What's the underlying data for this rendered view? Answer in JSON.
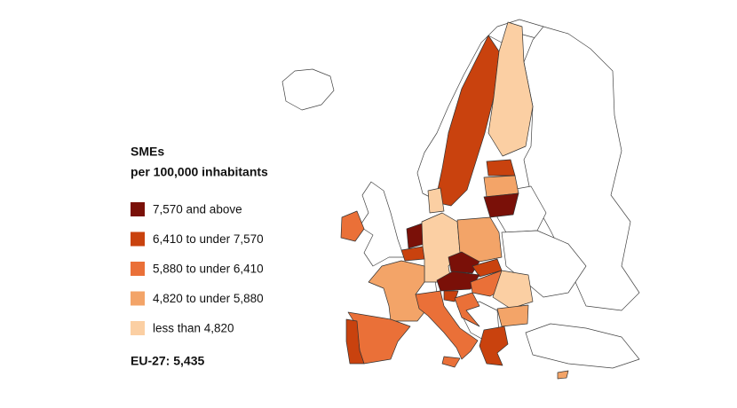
{
  "legend": {
    "title": [
      "SMEs",
      "per 100,000 inhabitants"
    ],
    "items": [
      {
        "label": "7,570 and above",
        "color": "#7a1008"
      },
      {
        "label": "6,410 to under 7,570",
        "color": "#c9420e"
      },
      {
        "label": "5,880 to under 6,410",
        "color": "#ea7038"
      },
      {
        "label": "4,820 to under 5,880",
        "color": "#f3a468"
      },
      {
        "label": "less than 4,820",
        "color": "#fbcfa3"
      }
    ]
  },
  "note": "EU-27: 5,435"
}
